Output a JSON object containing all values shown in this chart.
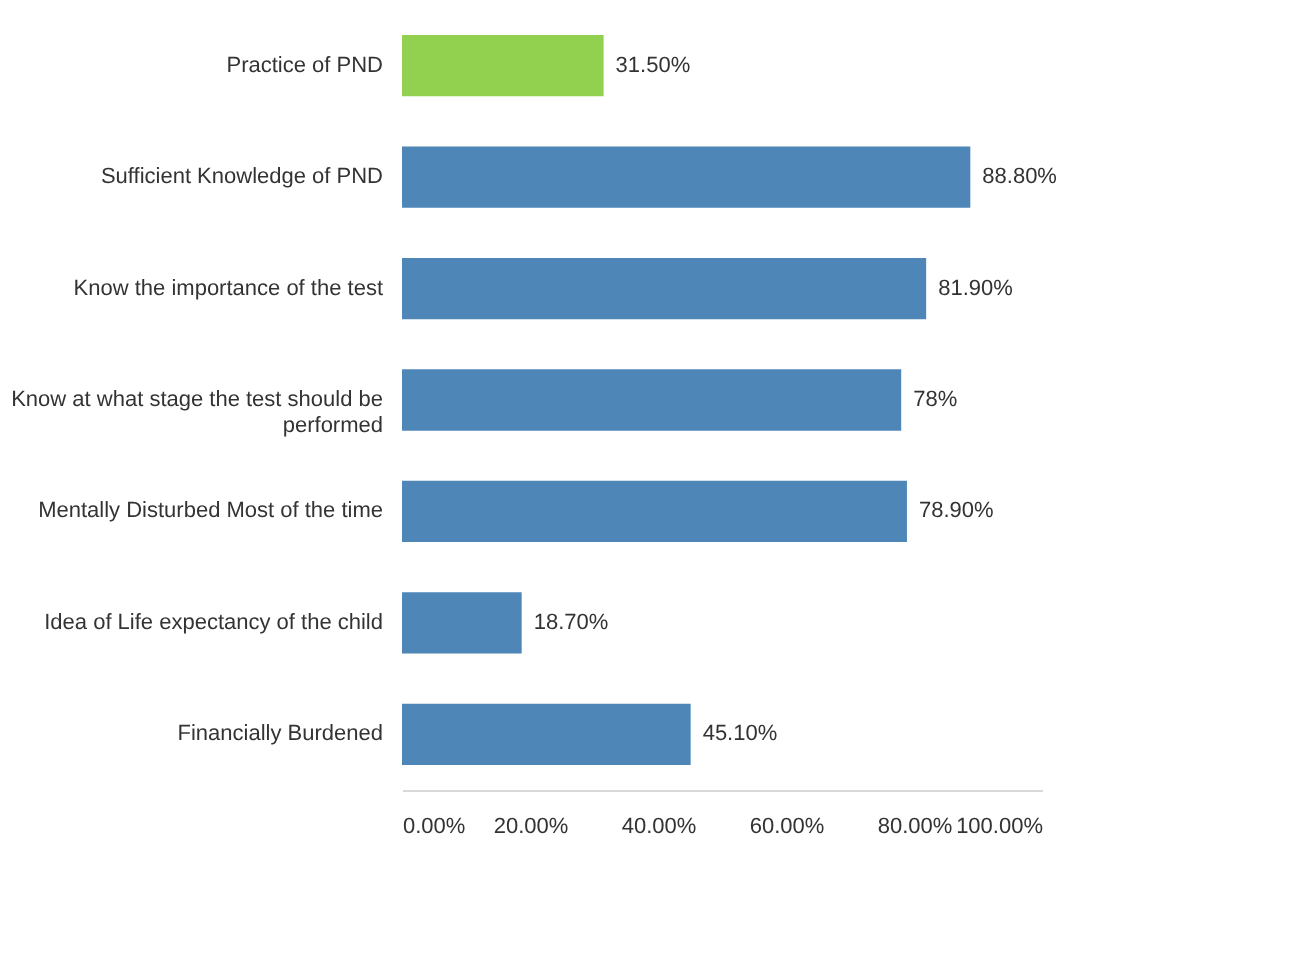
{
  "chart_data": {
    "type": "bar",
    "orientation": "horizontal",
    "categories": [
      "Practice of PND",
      "Sufficient Knowledge of PND",
      "Know the importance of the test",
      "Know at what stage the test should be performed",
      "Mentally Disturbed Most of the time",
      "Idea of Life expectancy of the child",
      "Financially Burdened"
    ],
    "values": [
      31.5,
      88.8,
      81.9,
      78,
      78.9,
      18.7,
      45.1
    ],
    "colors": [
      "#92d050",
      "#4f86b8",
      "#4f86b8",
      "#4f86b8",
      "#4f86b8",
      "#4f86b8",
      "#4f86b8"
    ],
    "value_labels": [
      "31.50%",
      "88.80%",
      "81.90%",
      "78%",
      "78.90%",
      "18.70%",
      "45.10%"
    ],
    "xlim": [
      0,
      100
    ],
    "xticks": [
      {
        "value": 0,
        "label": "0.00%"
      },
      {
        "value": 20,
        "label": "20.00%"
      },
      {
        "value": 40,
        "label": "40.00%"
      },
      {
        "value": 60,
        "label": "60.00%"
      },
      {
        "value": 80,
        "label": "80.00%"
      },
      {
        "value": 100,
        "label": "100.00%"
      }
    ],
    "grid": false
  }
}
